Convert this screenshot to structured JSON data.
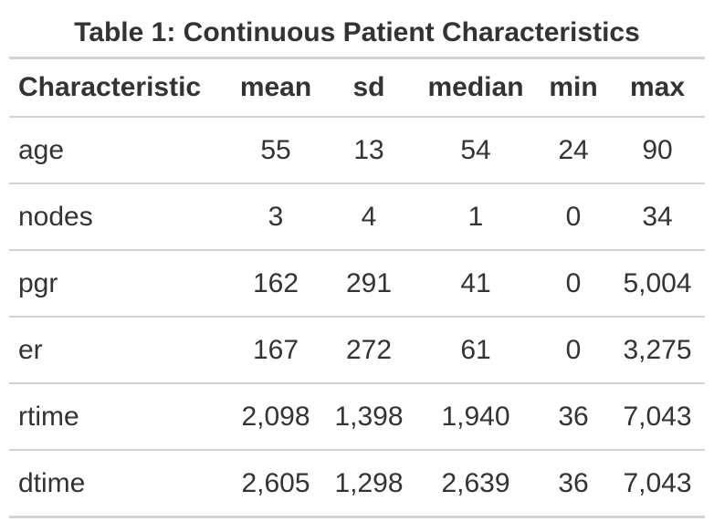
{
  "title": "Table 1: Continuous Patient Characteristics",
  "columns": [
    "Characteristic",
    "mean",
    "sd",
    "median",
    "min",
    "max"
  ],
  "rows": [
    [
      "age",
      "55",
      "13",
      "54",
      "24",
      "90"
    ],
    [
      "nodes",
      "3",
      "4",
      "1",
      "0",
      "34"
    ],
    [
      "pgr",
      "162",
      "291",
      "41",
      "0",
      "5,004"
    ],
    [
      "er",
      "167",
      "272",
      "61",
      "0",
      "3,275"
    ],
    [
      "rtime",
      "2,098",
      "1,398",
      "1,940",
      "36",
      "7,043"
    ],
    [
      "dtime",
      "2,605",
      "1,298",
      "2,639",
      "36",
      "7,043"
    ]
  ],
  "colors": {
    "text": "#333333",
    "rule": "#d3d3d3"
  }
}
